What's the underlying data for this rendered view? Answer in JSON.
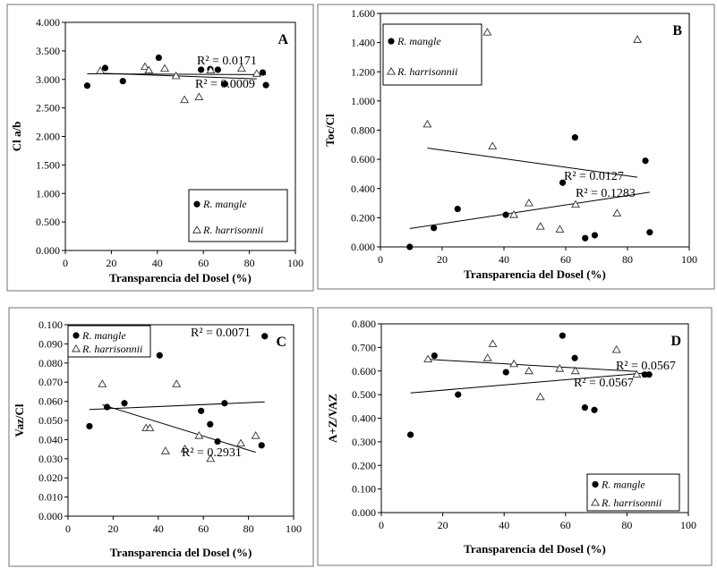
{
  "chart_data": [
    {
      "type": "scatter",
      "panel_label": "A",
      "ylabel": "Cl a/b",
      "xlabel": "Transparencia del Dosel (%)",
      "xlim": [
        0,
        100
      ],
      "ylim": [
        0,
        4
      ],
      "xticks": [
        "0",
        "20",
        "40",
        "60",
        "80",
        "100"
      ],
      "yticks": [
        "0.000",
        "0.500",
        "1.000",
        "1.500",
        "2.000",
        "2.500",
        "3.000",
        "3.500",
        "4.000"
      ],
      "legend": "bottom-right",
      "grid": false,
      "series": [
        {
          "name": "R. mangle",
          "marker": "circle",
          "x": [
            9.5,
            17.3,
            25,
            40.6,
            59,
            63,
            66.3,
            69.4,
            85.8,
            87.2
          ],
          "y": [
            2.89,
            3.2,
            2.97,
            3.38,
            3.17,
            3.18,
            3.17,
            2.92,
            3.12,
            2.9
          ],
          "r2_label": "R² = 0.0009"
        },
        {
          "name": "R. harrisonnii",
          "marker": "triangle",
          "x": [
            15.2,
            34.6,
            36.3,
            43.2,
            48.1,
            51.8,
            58.1,
            63.2,
            76.6,
            83.2
          ],
          "y": [
            3.15,
            3.22,
            3.16,
            3.19,
            3.06,
            2.64,
            2.69,
            3.16,
            3.19,
            3.1
          ],
          "r2_label": "R² = 0.0171"
        }
      ]
    },
    {
      "type": "scatter",
      "panel_label": "B",
      "ylabel": "Toc/Cl",
      "xlabel": "Transparencia del Dosel (%)",
      "xlim": [
        0,
        100
      ],
      "ylim": [
        0,
        1.6
      ],
      "xticks": [
        "0",
        "20",
        "40",
        "60",
        "80",
        "100"
      ],
      "yticks": [
        "0.000",
        "0.200",
        "0.400",
        "0.600",
        "0.800",
        "1.000",
        "1.200",
        "1.400",
        "1.600"
      ],
      "legend": "top-left",
      "grid": false,
      "series": [
        {
          "name": "R. mangle",
          "marker": "circle",
          "x": [
            9.5,
            17.3,
            25,
            40.6,
            59,
            63,
            66.3,
            69.4,
            85.8,
            87.2
          ],
          "y": [
            0.0,
            0.13,
            0.26,
            0.22,
            0.44,
            0.75,
            0.06,
            0.08,
            0.59,
            0.1
          ],
          "r2_label": "R² = 0.1283"
        },
        {
          "name": "R. harrisonnii",
          "marker": "triangle",
          "x": [
            15.2,
            34.6,
            36.3,
            43.2,
            48.1,
            51.8,
            58.1,
            63.2,
            76.6,
            83.2
          ],
          "y": [
            0.84,
            1.47,
            0.69,
            0.22,
            0.3,
            0.14,
            0.12,
            0.29,
            0.23,
            1.42
          ],
          "r2_label": "R² = 0.0127"
        }
      ]
    },
    {
      "type": "scatter",
      "panel_label": "C",
      "ylabel": "Vaz/Cl",
      "xlabel": "Transparencia del Dosel (%)",
      "xlim": [
        0,
        100
      ],
      "ylim": [
        0,
        0.1
      ],
      "xticks": [
        "0",
        "20",
        "40",
        "60",
        "80",
        "100"
      ],
      "yticks": [
        "0.000",
        "0.010",
        "0.020",
        "0.030",
        "0.040",
        "0.050",
        "0.060",
        "0.070",
        "0.080",
        "0.090",
        "0.100"
      ],
      "legend": "top-left",
      "grid": false,
      "series": [
        {
          "name": "R. mangle",
          "marker": "circle",
          "x": [
            9.5,
            17.3,
            25,
            40.6,
            59,
            63,
            66.3,
            69.4,
            85.8,
            87.2
          ],
          "y": [
            0.047,
            0.057,
            0.059,
            0.084,
            0.055,
            0.048,
            0.039,
            0.059,
            0.037,
            0.094
          ],
          "r2_label": "R² = 0.0071"
        },
        {
          "name": "R. harrisonnii",
          "marker": "triangle",
          "x": [
            15.2,
            34.6,
            36.3,
            43.2,
            48.1,
            51.8,
            58.1,
            63.2,
            76.6,
            83.2
          ],
          "y": [
            0.069,
            0.046,
            0.046,
            0.034,
            0.069,
            0.035,
            0.042,
            0.03,
            0.038,
            0.042
          ],
          "r2_label": "R² = 0.2931"
        }
      ]
    },
    {
      "type": "scatter",
      "panel_label": "D",
      "ylabel": "A+Z/VAZ",
      "xlabel": "Transparencia del Dosel (%)",
      "xlim": [
        0,
        100
      ],
      "ylim": [
        0,
        0.8
      ],
      "xticks": [
        "0",
        "20",
        "40",
        "60",
        "80",
        "100"
      ],
      "yticks": [
        "0.000",
        "0.100",
        "0.200",
        "0.300",
        "0.400",
        "0.500",
        "0.600",
        "0.700",
        "0.800"
      ],
      "legend": "bottom-right",
      "grid": false,
      "series": [
        {
          "name": "R. mangle",
          "marker": "circle",
          "x": [
            9.5,
            17.3,
            25,
            40.6,
            59,
            63,
            66.3,
            69.4,
            85.8,
            87.2
          ],
          "y": [
            0.33,
            0.665,
            0.5,
            0.595,
            0.75,
            0.655,
            0.445,
            0.435,
            0.585,
            0.585
          ],
          "r2_label": "R² = 0.0567"
        },
        {
          "name": "R. harrisonnii",
          "marker": "triangle",
          "x": [
            15.2,
            34.6,
            36.3,
            43.2,
            48.1,
            51.8,
            58.1,
            63.2,
            76.6,
            83.2
          ],
          "y": [
            0.65,
            0.655,
            0.715,
            0.63,
            0.6,
            0.49,
            0.61,
            0.6,
            0.69,
            0.585
          ],
          "r2_label": "R² = 0.0567"
        }
      ]
    }
  ]
}
